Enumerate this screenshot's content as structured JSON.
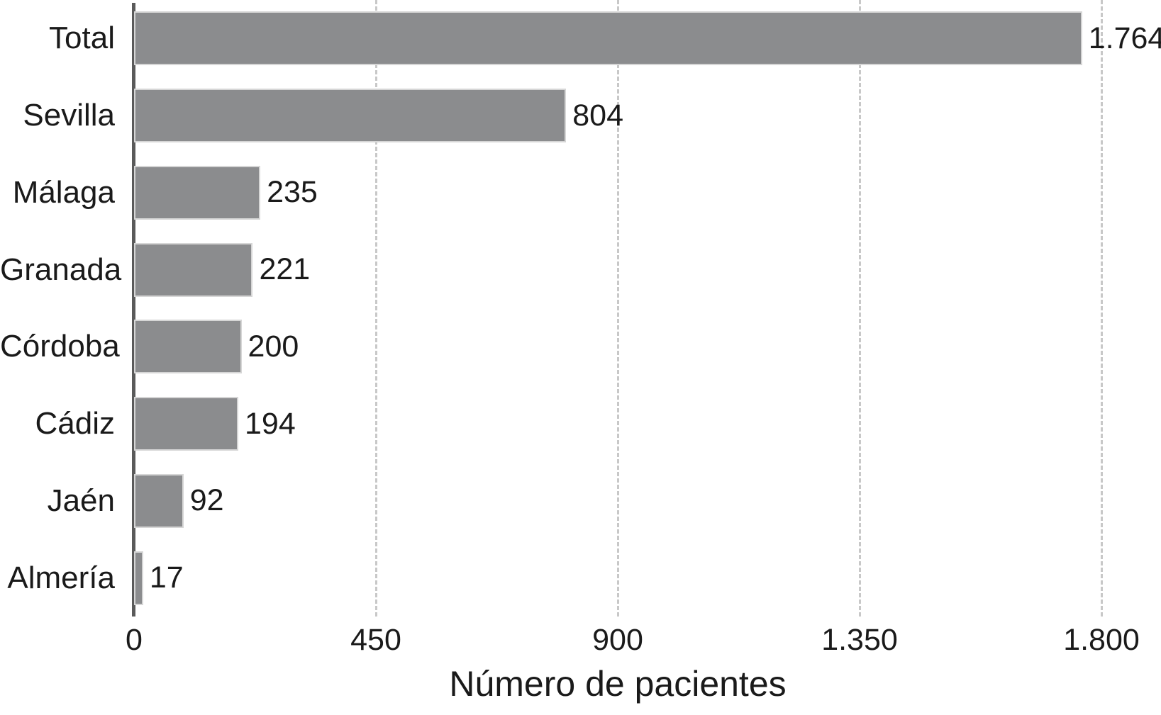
{
  "chart_data": {
    "type": "bar",
    "orientation": "horizontal",
    "categories": [
      "Total",
      "Sevilla",
      "Málaga",
      "Granada",
      "Córdoba",
      "Cádiz",
      "Jaén",
      "Almería"
    ],
    "values": [
      1764,
      804,
      235,
      221,
      200,
      194,
      92,
      17
    ],
    "value_labels": [
      "1.764",
      "804",
      "235",
      "221",
      "200",
      "194",
      "92",
      "17"
    ],
    "title": "",
    "xlabel": "Número de pacientes",
    "ylabel": "",
    "xlim": [
      0,
      1800
    ],
    "x_ticks": [
      {
        "value": 0,
        "label": "0"
      },
      {
        "value": 450,
        "label": "450"
      },
      {
        "value": 900,
        "label": "900"
      },
      {
        "value": 1350,
        "label": "1.350"
      },
      {
        "value": 1800,
        "label": "1.800"
      }
    ],
    "grid": "vertical-dashed",
    "legend": "none",
    "colors": {
      "bar_fill": "#8b8c8e",
      "bar_border": "#d6d6d6",
      "axis_line": "#5a5a5a",
      "gridline": "#c8c8c8",
      "text": "#1a1a1a"
    }
  }
}
